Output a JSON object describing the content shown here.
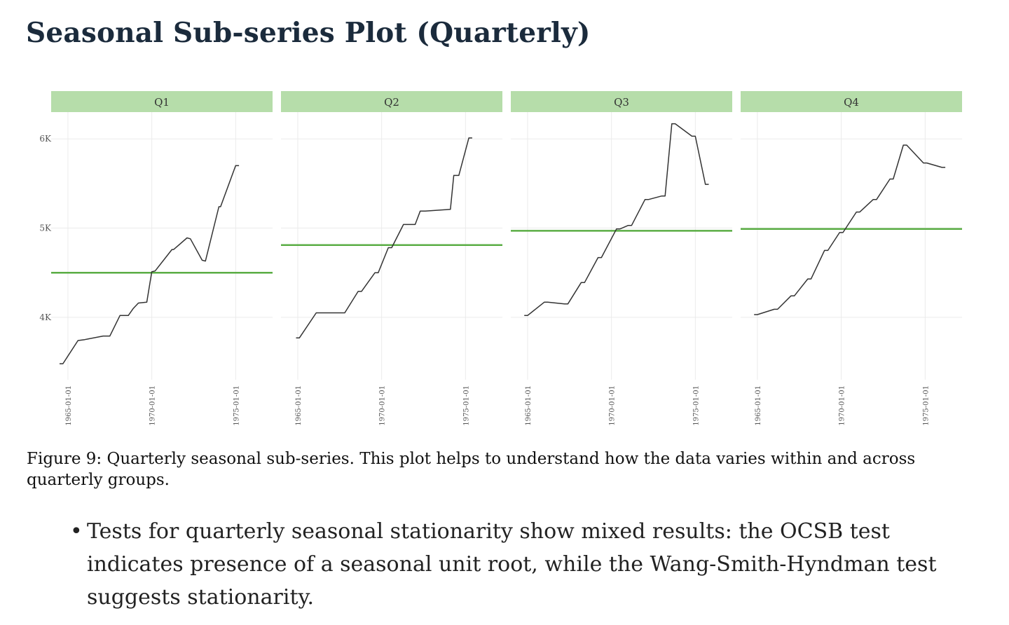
{
  "page": {
    "title": "Seasonal Sub-series Plot (Quarterly)",
    "caption": "Figure 9: Quarterly seasonal sub-series. This plot helps to understand how the data varies within and across quarterly groups.",
    "bullets": [
      "Tests for quarterly seasonal stationarity show mixed results: the OCSB test indicates presence of a seasonal unit root, while the Wang-Smith-Hyndman test suggests stationarity."
    ]
  },
  "chart_data": {
    "type": "line",
    "y_ticks": [
      {
        "value": 4000,
        "label": "4K"
      },
      {
        "value": 5000,
        "label": "5K"
      },
      {
        "value": 6000,
        "label": "6K"
      }
    ],
    "x_ticks": [
      {
        "value": 1965,
        "label": "1965-01-01"
      },
      {
        "value": 1970,
        "label": "1970-01-01"
      },
      {
        "value": 1975,
        "label": "1975-01-01"
      }
    ],
    "ylim": [
      3300,
      6300
    ],
    "xlim": [
      1964.0,
      1977.2
    ],
    "colors": {
      "line": "#333333",
      "mean": "#5aad44",
      "strip": "#b6ddaa",
      "grid": "#ebebeb"
    },
    "panels": [
      {
        "name": "Q1",
        "mean": 4500,
        "x": [
          1964.5,
          1964.7,
          1965.6,
          1966.0,
          1967.1,
          1967.5,
          1968.1,
          1968.6,
          1968.9,
          1969.2,
          1969.7,
          1970.0,
          1970.2,
          1971.2,
          1971.3,
          1972.1,
          1972.3,
          1973.0,
          1973.2,
          1974.0,
          1974.1,
          1975.0,
          1975.2
        ],
        "values": [
          3480,
          3480,
          3740,
          3750,
          3790,
          3790,
          4020,
          4020,
          4100,
          4160,
          4170,
          4510,
          4520,
          4760,
          4760,
          4890,
          4880,
          4640,
          4630,
          5240,
          5240,
          5700,
          5700
        ]
      },
      {
        "name": "Q2",
        "mean": 4810,
        "x": [
          1964.9,
          1965.1,
          1966.1,
          1966.3,
          1967.6,
          1967.8,
          1968.6,
          1968.8,
          1969.6,
          1969.8,
          1970.4,
          1970.6,
          1971.3,
          1972.0,
          1972.3,
          1972.6,
          1974.1,
          1974.3,
          1974.6,
          1975.2,
          1975.4
        ],
        "values": [
          3770,
          3770,
          4050,
          4050,
          4050,
          4050,
          4290,
          4290,
          4500,
          4500,
          4780,
          4780,
          5040,
          5040,
          5190,
          5190,
          5210,
          5590,
          5590,
          6010,
          6010
        ]
      },
      {
        "name": "Q3",
        "mean": 4970,
        "x": [
          1964.8,
          1965.0,
          1966.0,
          1966.2,
          1967.2,
          1967.4,
          1968.2,
          1968.4,
          1969.2,
          1969.4,
          1970.3,
          1970.5,
          1971.0,
          1971.2,
          1972.0,
          1972.2,
          1973.0,
          1973.2,
          1973.6,
          1973.8,
          1974.8,
          1975.0,
          1975.6,
          1975.8
        ],
        "values": [
          4020,
          4020,
          4170,
          4170,
          4150,
          4150,
          4390,
          4390,
          4670,
          4670,
          4990,
          4990,
          5030,
          5030,
          5320,
          5320,
          5360,
          5360,
          6170,
          6170,
          6030,
          6030,
          5490,
          5490
        ]
      },
      {
        "name": "Q4",
        "mean": 4990,
        "x": [
          1964.8,
          1965.0,
          1966.0,
          1966.2,
          1967.0,
          1967.2,
          1968.0,
          1968.2,
          1969.0,
          1969.2,
          1969.9,
          1970.1,
          1970.9,
          1971.1,
          1971.9,
          1972.1,
          1972.9,
          1973.1,
          1973.7,
          1973.9,
          1974.9,
          1975.1,
          1976.0,
          1976.2
        ],
        "values": [
          4030,
          4030,
          4090,
          4090,
          4240,
          4240,
          4430,
          4430,
          4750,
          4750,
          4950,
          4950,
          5180,
          5180,
          5320,
          5320,
          5550,
          5550,
          5930,
          5930,
          5730,
          5730,
          5680,
          5680
        ]
      }
    ]
  }
}
